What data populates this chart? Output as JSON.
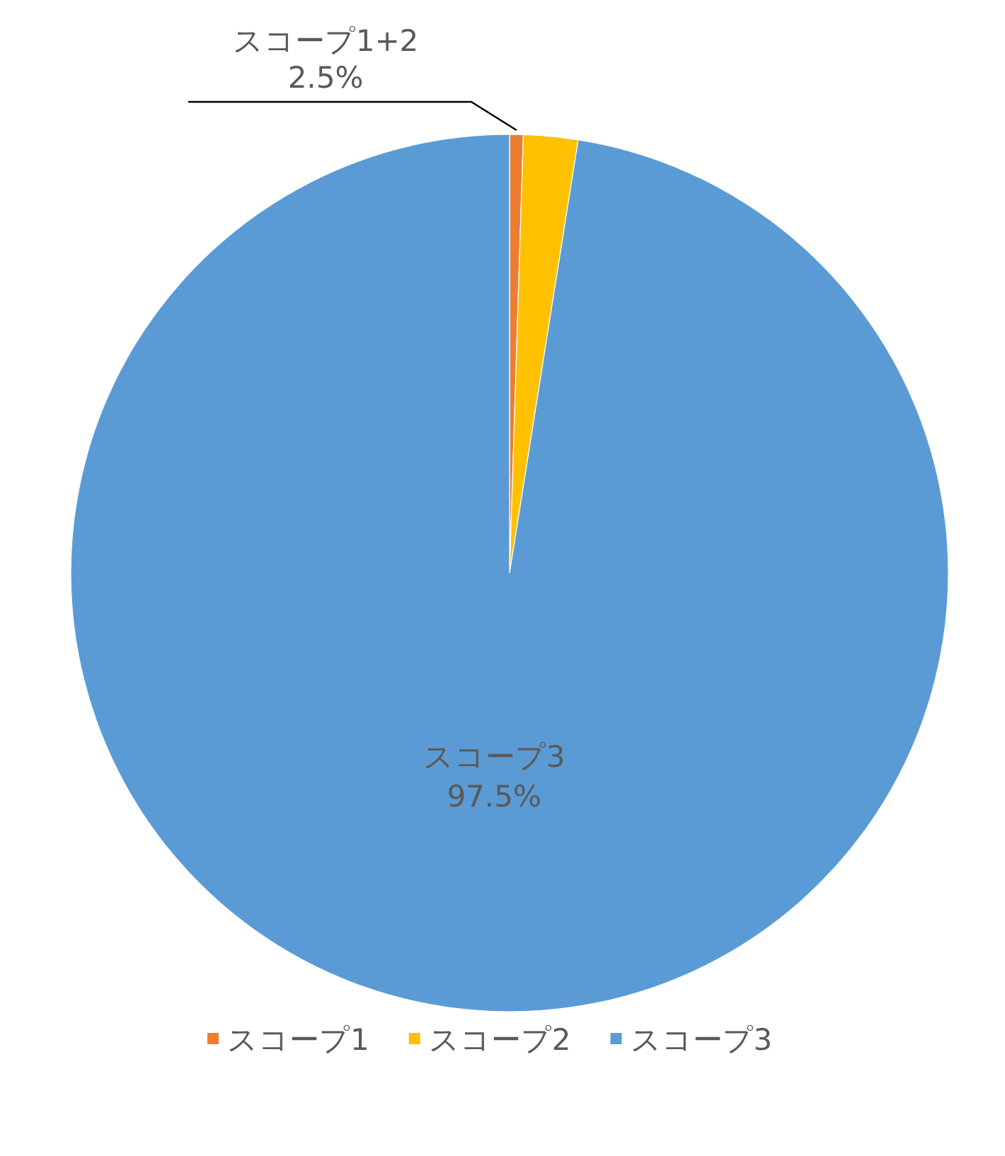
{
  "chart_data": {
    "type": "pie",
    "categories": [
      "スコープ1",
      "スコープ2",
      "スコープ3"
    ],
    "values": [
      0.5,
      2.0,
      97.5
    ],
    "colors": [
      "#ed7d31",
      "#ffc000",
      "#5b9bd5"
    ],
    "value_labels": [
      null,
      null,
      "97.5%"
    ],
    "annotations": [
      "スコープ1+2 2.5%"
    ],
    "legend": "bottom"
  }
}
